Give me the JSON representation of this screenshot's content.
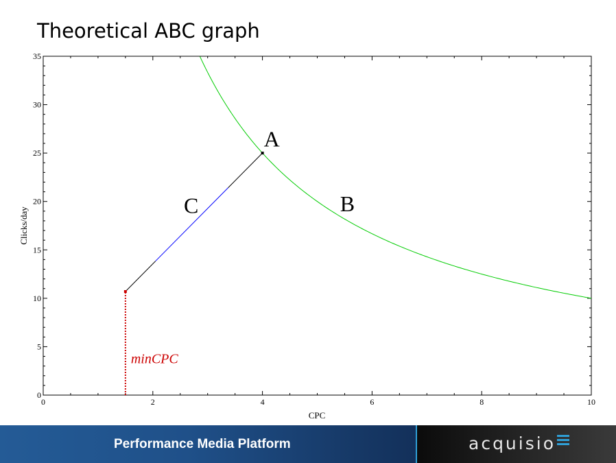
{
  "slide": {
    "title": "Theoretical ABC graph"
  },
  "footer": {
    "text": "Performance Media Platform",
    "logo_text": "acquisio",
    "logo_icon": "menu-bars-icon",
    "colors": {
      "left_band": "#1f5089",
      "divider": "#2f9fd6",
      "right_band": "#262626",
      "logo_accent": "#2f9fd6"
    }
  },
  "chart_data": {
    "type": "line",
    "title": "",
    "xlabel": "CPC",
    "ylabel": "Clicks/day",
    "xlim": [
      0,
      10
    ],
    "ylim": [
      0,
      35
    ],
    "xticks": [
      0,
      2,
      4,
      6,
      8,
      10
    ],
    "yticks": [
      0,
      5,
      10,
      15,
      20,
      25,
      30,
      35
    ],
    "grid": false,
    "series": [
      {
        "key": "B",
        "formula": "y = 100 / x",
        "x_range": [
          2.86,
          10
        ],
        "color": "#00cc00",
        "style": "solid"
      },
      {
        "key": "C",
        "x": [
          1.5,
          4
        ],
        "y": [
          10.7,
          25
        ],
        "colors": [
          "#000000",
          "#0000ff",
          "#000000"
        ],
        "style": "solid"
      },
      {
        "key": "minCPC",
        "x": [
          1.5,
          1.5
        ],
        "y": [
          0,
          10.7
        ],
        "color": "#cc0000",
        "style": "dotted"
      }
    ],
    "points": [
      {
        "x": 4,
        "y": 25,
        "color": "#000000"
      },
      {
        "x": 1.5,
        "y": 10.7,
        "color": "#cc0000"
      }
    ],
    "annotations": [
      {
        "text": "A",
        "x": 4.17,
        "y": 25.7,
        "color": "#000000",
        "italic": false
      },
      {
        "text": "B",
        "x": 5.55,
        "y": 19.0,
        "color": "#000000",
        "italic": false
      },
      {
        "text": "C",
        "x": 2.7,
        "y": 18.8,
        "color": "#000000",
        "italic": false
      },
      {
        "text": "minCPC",
        "x": 1.6,
        "y": 3.3,
        "color": "#cc0000",
        "italic": true
      }
    ]
  }
}
